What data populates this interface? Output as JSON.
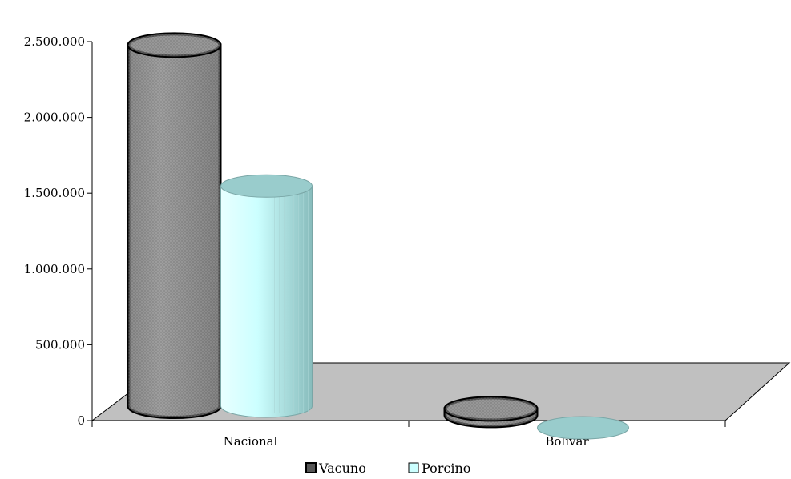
{
  "chart_data": {
    "type": "bar",
    "style": "3d-cylinder",
    "categories": [
      "Nacional",
      "Bolívar"
    ],
    "series": [
      {
        "name": "Vacuno",
        "values": [
          2530000,
          130000
        ],
        "color": "#8a8a8a"
      },
      {
        "name": "Porcino",
        "values": [
          1600000,
          5000
        ],
        "color": "#ccffff"
      }
    ],
    "ylim": [
      0,
      2500000
    ],
    "yticks": [
      {
        "value": 0,
        "label": "0"
      },
      {
        "value": 500000,
        "label": "500.000"
      },
      {
        "value": 1000000,
        "label": "1.000.000"
      },
      {
        "value": 1500000,
        "label": "1.500.000"
      },
      {
        "value": 2000000,
        "label": "2.000.000"
      },
      {
        "value": 2500000,
        "label": "2.500.000"
      }
    ],
    "legend_position": "bottom",
    "grid": false,
    "floor_color": "#c0c0c0",
    "cap_colors": {
      "Vacuno": "#8a8a8a",
      "Porcino": "#99cccc"
    }
  }
}
